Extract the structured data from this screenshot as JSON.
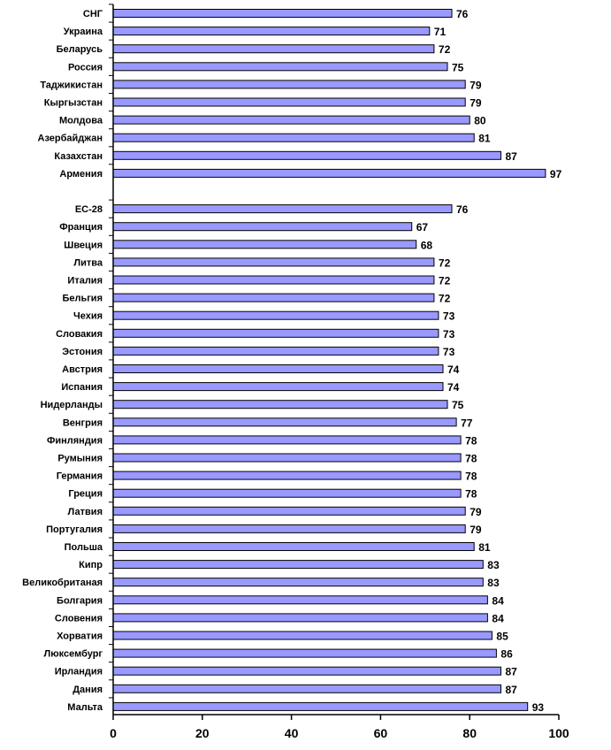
{
  "chart_data": {
    "type": "bar",
    "orientation": "horizontal",
    "title": "",
    "xlabel": "",
    "ylabel": "",
    "xlim": [
      0,
      100
    ],
    "x_ticks": [
      0,
      20,
      40,
      60,
      80,
      100
    ],
    "grid": false,
    "legend": "none",
    "bar_color": "#9999ff",
    "bar_edge_color": "#000000",
    "groups": [
      {
        "categories": [
          "СНГ",
          "Украина",
          "Беларусь",
          "Россия",
          "Таджикистан",
          "Кыргызстан",
          "Молдова",
          "Азербайджан",
          "Казахстан",
          "Армения"
        ],
        "values": [
          76,
          71,
          72,
          75,
          79,
          79,
          80,
          81,
          87,
          97
        ]
      },
      {
        "categories": [
          "ЕС-28",
          "Франция",
          "Швеция",
          "Литва",
          "Италия",
          "Бельгия",
          "Чехия",
          "Словакия",
          "Эстония",
          "Австрия",
          "Испания",
          "Нидерланды",
          "Венгрия",
          "Финляндия",
          "Румыния",
          "Германия",
          "Греция",
          "Латвия",
          "Португалия",
          "Польша",
          "Кипр",
          "Великобританая",
          "Болгария",
          "Словения",
          "Хорватия",
          "Люксембург",
          "Ирландия",
          "Дания",
          "Мальта"
        ],
        "values": [
          76,
          67,
          68,
          72,
          72,
          72,
          73,
          73,
          73,
          74,
          74,
          75,
          77,
          78,
          78,
          78,
          78,
          79,
          79,
          81,
          83,
          83,
          84,
          84,
          85,
          86,
          87,
          87,
          93
        ]
      }
    ]
  }
}
